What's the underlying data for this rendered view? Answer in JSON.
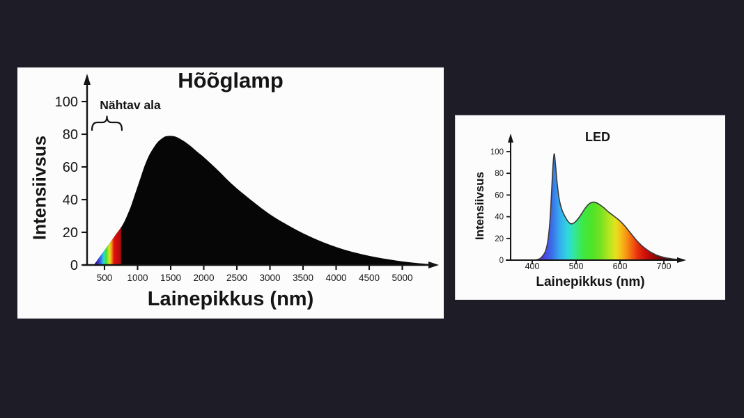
{
  "page": {
    "background_color": "#1e1c26",
    "panel_color": "#fcfcfc",
    "axis_color": "#141414"
  },
  "chart_data": [
    {
      "type": "area",
      "title": "Hõõglamp",
      "xlabel": "Lainepikkus (nm)",
      "ylabel": "Intensiivsus",
      "xlim": [
        240,
        5550
      ],
      "ylim": [
        0,
        110
      ],
      "grid": false,
      "legend": false,
      "x_ticks": [
        500,
        1000,
        1500,
        2000,
        2500,
        3000,
        3500,
        4000,
        4500,
        5000
      ],
      "y_ticks": [
        0,
        20,
        40,
        60,
        80,
        100
      ],
      "fill_color": "#060606",
      "annotation": {
        "label": "Nähtav ala",
        "range_nm": [
          380,
          750
        ],
        "range_nm_fill": [
          340,
          750
        ]
      },
      "series": [
        {
          "x": [
            340,
            400,
            450,
            500,
            550,
            600,
            650,
            700,
            750,
            800,
            850,
            900,
            950,
            1000,
            1050,
            1100,
            1150,
            1200,
            1300,
            1400,
            1450,
            1500,
            1550,
            1600,
            1700,
            1800,
            1900,
            2000,
            2200,
            2400,
            2600,
            2800,
            3000,
            3200,
            3400,
            3600,
            3800,
            4000,
            4200,
            4400,
            4600,
            4800,
            5000,
            5200,
            5400,
            5500
          ],
          "y": [
            0,
            3.4,
            6.2,
            9,
            11.8,
            14.6,
            17.4,
            20.2,
            23,
            26.5,
            31,
            36,
            42,
            48,
            54,
            60,
            65,
            69,
            75,
            78.3,
            78.9,
            79,
            78.8,
            78.1,
            75.8,
            72.8,
            69.3,
            66,
            58.5,
            50.5,
            43.5,
            37,
            31,
            26,
            21.5,
            17.5,
            14,
            11,
            8.5,
            6.5,
            4.8,
            3.4,
            2.2,
            1.3,
            0.6,
            0.3
          ]
        }
      ],
      "spectrum_gradient": {
        "stops": [
          {
            "nm": 340,
            "color": "#1b0a52"
          },
          {
            "nm": 380,
            "color": "#3a17a0"
          },
          {
            "nm": 420,
            "color": "#3748d8"
          },
          {
            "nm": 450,
            "color": "#2f7fe0"
          },
          {
            "nm": 478,
            "color": "#2cc3e8"
          },
          {
            "nm": 500,
            "color": "#2ce3a8"
          },
          {
            "nm": 522,
            "color": "#3fdc3d"
          },
          {
            "nm": 548,
            "color": "#85e12b"
          },
          {
            "nm": 572,
            "color": "#d9e526"
          },
          {
            "nm": 592,
            "color": "#f2bb1d"
          },
          {
            "nm": 612,
            "color": "#f4831a"
          },
          {
            "nm": 630,
            "color": "#ea3b11"
          },
          {
            "nm": 645,
            "color": "#dd120d"
          },
          {
            "nm": 700,
            "color": "#c60b0b"
          },
          {
            "nm": 750,
            "color": "#b20808"
          }
        ]
      }
    },
    {
      "type": "area",
      "title": "LED",
      "xlabel": "Lainepikkus (nm)",
      "ylabel": "Intensiivsus",
      "xlim": [
        355,
        760
      ],
      "ylim": [
        0,
        110
      ],
      "grid": false,
      "legend": false,
      "x_ticks": [
        400,
        500,
        600,
        700
      ],
      "y_ticks": [
        0,
        20,
        40,
        60,
        80,
        100
      ],
      "curve_outline_color": "#3a3a3a",
      "series": [
        {
          "x": [
            404,
            412,
            418,
            424,
            430,
            435,
            440,
            444,
            447,
            450,
            453,
            457,
            462,
            468,
            475,
            482,
            488,
            494,
            500,
            508,
            516,
            524,
            532,
            540,
            548,
            556,
            564,
            572,
            580,
            588,
            596,
            604,
            612,
            620,
            628,
            636,
            644,
            652,
            660,
            668,
            676,
            684,
            692,
            700,
            710,
            720,
            730,
            742
          ],
          "y": [
            0,
            0.5,
            1.5,
            4,
            8,
            16,
            34,
            62,
            85,
            98,
            88,
            70,
            55,
            46,
            40,
            35.5,
            33.5,
            34,
            36,
            40,
            45,
            49.5,
            52.5,
            53.5,
            52.5,
            50.5,
            48,
            45,
            42.5,
            40,
            37.5,
            34.5,
            31,
            27,
            23,
            19,
            15.5,
            12.5,
            10,
            7.8,
            6,
            4.5,
            3.4,
            2.5,
            1.7,
            1.1,
            0.6,
            0
          ]
        }
      ],
      "spectrum_gradient": {
        "stops": [
          {
            "nm": 404,
            "color": "#7030dd"
          },
          {
            "nm": 425,
            "color": "#4b3ee5"
          },
          {
            "nm": 445,
            "color": "#3b6ee8"
          },
          {
            "nm": 462,
            "color": "#35aaf0"
          },
          {
            "nm": 480,
            "color": "#30d6e0"
          },
          {
            "nm": 495,
            "color": "#31e6a0"
          },
          {
            "nm": 512,
            "color": "#3ce84f"
          },
          {
            "nm": 535,
            "color": "#4ce428"
          },
          {
            "nm": 555,
            "color": "#73e122"
          },
          {
            "nm": 575,
            "color": "#b2e620"
          },
          {
            "nm": 590,
            "color": "#e4e11e"
          },
          {
            "nm": 603,
            "color": "#f7bb18"
          },
          {
            "nm": 615,
            "color": "#f79214"
          },
          {
            "nm": 628,
            "color": "#f25f10"
          },
          {
            "nm": 640,
            "color": "#e6300d"
          },
          {
            "nm": 655,
            "color": "#d2120c"
          },
          {
            "nm": 672,
            "color": "#ab0808"
          },
          {
            "nm": 690,
            "color": "#7a0505"
          },
          {
            "nm": 710,
            "color": "#470303"
          },
          {
            "nm": 728,
            "color": "#200101"
          },
          {
            "nm": 742,
            "color": "#0d0000"
          }
        ]
      }
    }
  ]
}
